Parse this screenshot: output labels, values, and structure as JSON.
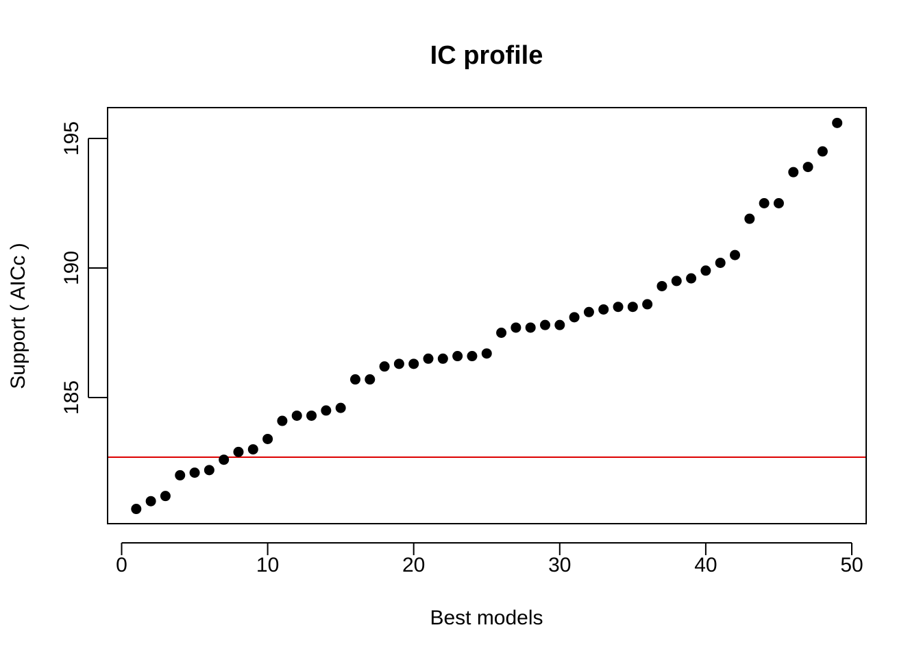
{
  "chart_data": {
    "type": "scatter",
    "title": "IC profile",
    "xlabel": "Best models",
    "ylabel": "Support ( AICc )",
    "xlim": [
      0,
      50
    ],
    "ylim": [
      180,
      196
    ],
    "x_ticks": [
      0,
      10,
      20,
      30,
      40,
      50
    ],
    "y_ticks": [
      185,
      190,
      195
    ],
    "grid": false,
    "legend": "none",
    "point_color": "#000000",
    "reference_line": {
      "orientation": "horizontal",
      "y": 182.7,
      "color": "#dd0000"
    },
    "series": [
      {
        "x": [
          1,
          2,
          3,
          4,
          5,
          6,
          7,
          8,
          9,
          10,
          11,
          12,
          13,
          14,
          15,
          16,
          17,
          18,
          19,
          20,
          21,
          22,
          23,
          24,
          25,
          26,
          27,
          28,
          29,
          30,
          31,
          32,
          33,
          34,
          35,
          36,
          37,
          38,
          39,
          40,
          41,
          42,
          43,
          44,
          45,
          46,
          47,
          48,
          49
        ],
        "y": [
          180.7,
          181.0,
          181.2,
          182.0,
          182.1,
          182.2,
          182.6,
          182.9,
          183.0,
          183.4,
          184.1,
          184.3,
          184.3,
          184.5,
          184.6,
          185.7,
          185.7,
          186.2,
          186.3,
          186.3,
          186.5,
          186.5,
          186.6,
          186.6,
          186.7,
          187.5,
          187.7,
          187.7,
          187.8,
          187.8,
          188.1,
          188.3,
          188.4,
          188.5,
          188.5,
          188.6,
          189.3,
          189.5,
          189.6,
          189.9,
          190.2,
          190.5,
          191.9,
          192.5,
          192.5,
          193.7,
          193.9,
          194.5,
          195.6
        ]
      }
    ]
  }
}
